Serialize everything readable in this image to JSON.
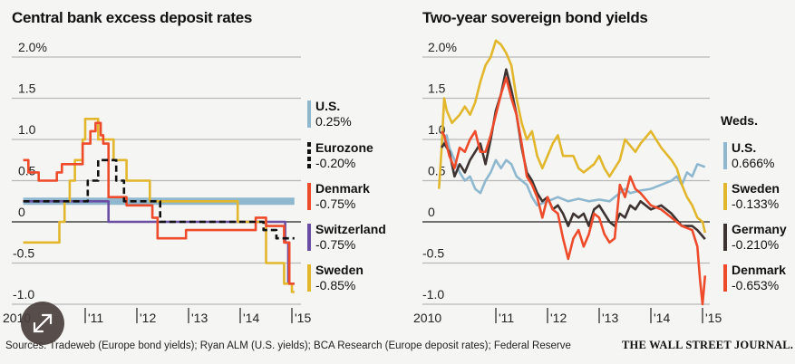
{
  "footer": {
    "sources": "Sources: Tradeweb (Europe bond yields); Ryan ALM (U.S. yields); BCA Research (Europe deposit rates); Federal Reserve",
    "publisher": "THE WALL STREET JOURNAL."
  },
  "expand_button": {
    "icon": "expand-arrows-icon"
  },
  "chart_data": [
    {
      "type": "line",
      "title": "Central bank excess deposit rates",
      "xlabel": "",
      "ylabel": "",
      "ylim": [
        -1.0,
        2.0
      ],
      "yticks": [
        "2.0%",
        "1.5",
        "1.0",
        "0.5",
        "0",
        "-0.5",
        "-1.0"
      ],
      "ytick_values": [
        2.0,
        1.5,
        1.0,
        0.5,
        0,
        -0.5,
        -1.0
      ],
      "xticks": [
        "2010",
        "'11",
        "'12",
        "'13",
        "'14",
        "'15"
      ],
      "xtick_values": [
        2010,
        2011,
        2012,
        2013,
        2014,
        2015
      ],
      "xlim": [
        2009.8,
        2015.15
      ],
      "grid": true,
      "legend_position": "right",
      "series": [
        {
          "name": "U.S.",
          "label": "0.25%",
          "color": "#8fb8cf",
          "style": "thick",
          "x": [
            2009.8,
            2015.05
          ],
          "y": [
            0.25,
            0.25
          ]
        },
        {
          "name": "Switzerland",
          "label": "-0.75%",
          "color": "#6a4ea3",
          "style": "solid",
          "x": [
            2009.8,
            2011.45,
            2011.45,
            2014.87,
            2014.87,
            2014.93,
            2014.93,
            2015.05
          ],
          "y": [
            0.25,
            0.25,
            0.0,
            0.0,
            -0.25,
            -0.25,
            -0.75,
            -0.75
          ]
        },
        {
          "name": "Sweden",
          "label": "-0.85%",
          "color": "#e2b72c",
          "style": "solid",
          "x": [
            2009.8,
            2010.5,
            2010.5,
            2010.6,
            2010.6,
            2010.7,
            2010.7,
            2010.8,
            2010.8,
            2010.95,
            2010.95,
            2011.0,
            2011.0,
            2011.25,
            2011.25,
            2011.55,
            2011.55,
            2011.8,
            2011.8,
            2012.25,
            2012.25,
            2012.45,
            2012.45,
            2013.95,
            2013.95,
            2014.5,
            2014.5,
            2014.85,
            2014.85,
            2015.0,
            2015.0,
            2015.05
          ],
          "y": [
            -0.25,
            -0.25,
            0.0,
            0.0,
            0.25,
            0.25,
            0.5,
            0.5,
            0.75,
            0.75,
            1.0,
            1.0,
            1.25,
            1.25,
            1.0,
            1.0,
            0.75,
            0.75,
            0.5,
            0.5,
            0.25,
            0.25,
            0.25,
            0.25,
            0.0,
            0.0,
            -0.5,
            -0.5,
            -0.75,
            -0.75,
            -0.85,
            -0.85
          ]
        },
        {
          "name": "Denmark",
          "label": "-0.75%",
          "color": "#ee4b2b",
          "style": "solid",
          "x": [
            2009.8,
            2009.9,
            2009.9,
            2010.1,
            2010.1,
            2010.45,
            2010.45,
            2010.55,
            2010.55,
            2010.95,
            2010.95,
            2011.1,
            2011.1,
            2011.2,
            2011.2,
            2011.3,
            2011.3,
            2011.35,
            2011.35,
            2011.45,
            2011.45,
            2011.8,
            2011.8,
            2012.3,
            2012.3,
            2012.4,
            2012.4,
            2012.95,
            2012.95,
            2014.3,
            2014.3,
            2014.5,
            2014.5,
            2014.85,
            2014.85,
            2014.95,
            2014.95,
            2015.05
          ],
          "y": [
            0.75,
            0.75,
            0.6,
            0.6,
            0.5,
            0.5,
            0.6,
            0.6,
            0.7,
            0.7,
            0.95,
            0.95,
            1.1,
            1.1,
            1.2,
            1.2,
            1.05,
            1.05,
            0.95,
            0.95,
            0.3,
            0.3,
            0.2,
            0.2,
            0.05,
            0.05,
            -0.2,
            -0.2,
            -0.1,
            -0.1,
            0.05,
            0.05,
            -0.05,
            -0.05,
            -0.25,
            -0.25,
            -0.75,
            -0.75
          ]
        },
        {
          "name": "Eurozone",
          "label": "-0.20%",
          "color": "#111111",
          "style": "dashed",
          "x": [
            2009.8,
            2011.05,
            2011.05,
            2011.25,
            2011.25,
            2011.6,
            2011.6,
            2011.75,
            2011.75,
            2012.45,
            2012.45,
            2014.45,
            2014.45,
            2014.7,
            2014.7,
            2015.05
          ],
          "y": [
            0.25,
            0.25,
            0.5,
            0.5,
            0.75,
            0.75,
            0.5,
            0.5,
            0.25,
            0.25,
            0.0,
            0.0,
            -0.1,
            -0.1,
            -0.2,
            -0.2
          ]
        }
      ]
    },
    {
      "type": "line",
      "title": "Two-year sovereign bond yields",
      "legend_title": "Weds.",
      "xlabel": "",
      "ylabel": "",
      "ylim": [
        -1.0,
        2.0
      ],
      "yticks": [
        "2.0%",
        "1.5",
        "1.0",
        "0.5",
        "0",
        "-0.5",
        "-1.0"
      ],
      "ytick_values": [
        2.0,
        1.5,
        1.0,
        0.5,
        0,
        -0.5,
        -1.0
      ],
      "xticks": [
        "2010",
        "'11",
        "'12",
        "'13",
        "'14",
        "'15"
      ],
      "xtick_values": [
        2010,
        2011,
        2012,
        2013,
        2014,
        2015
      ],
      "xlim": [
        2009.75,
        2015.15
      ],
      "grid": true,
      "legend_position": "right",
      "series": [
        {
          "name": "U.S.",
          "label": "0.666%",
          "color": "#8fb8cf",
          "x": [
            2010.0,
            2010.05,
            2010.1,
            2010.2,
            2010.3,
            2010.4,
            2010.5,
            2010.6,
            2010.7,
            2010.8,
            2010.9,
            2011.0,
            2011.1,
            2011.2,
            2011.3,
            2011.4,
            2011.5,
            2011.6,
            2011.7,
            2011.8,
            2012.0,
            2012.2,
            2012.4,
            2012.6,
            2012.8,
            2013.0,
            2013.2,
            2013.4,
            2013.5,
            2013.6,
            2013.8,
            2014.0,
            2014.2,
            2014.4,
            2014.5,
            2014.6,
            2014.7,
            2014.8,
            2014.9,
            2015.05
          ],
          "y": [
            0.95,
            1.05,
            0.9,
            0.75,
            0.6,
            0.5,
            0.55,
            0.4,
            0.35,
            0.5,
            0.6,
            0.75,
            0.65,
            0.75,
            0.7,
            0.55,
            0.5,
            0.45,
            0.3,
            0.2,
            0.25,
            0.3,
            0.25,
            0.28,
            0.25,
            0.27,
            0.25,
            0.35,
            0.4,
            0.35,
            0.38,
            0.4,
            0.45,
            0.5,
            0.55,
            0.45,
            0.6,
            0.55,
            0.7,
            0.666
          ]
        },
        {
          "name": "Sweden",
          "label": "-0.133%",
          "color": "#e2b72c",
          "x": [
            2009.9,
            2009.95,
            2010.0,
            2010.05,
            2010.15,
            2010.3,
            2010.4,
            2010.5,
            2010.6,
            2010.7,
            2010.8,
            2010.9,
            2011.0,
            2011.1,
            2011.2,
            2011.3,
            2011.4,
            2011.5,
            2011.6,
            2011.7,
            2011.8,
            2011.9,
            2012.0,
            2012.1,
            2012.2,
            2012.3,
            2012.5,
            2012.6,
            2012.7,
            2012.9,
            2013.0,
            2013.1,
            2013.2,
            2013.4,
            2013.5,
            2013.7,
            2013.8,
            2014.0,
            2014.2,
            2014.4,
            2014.5,
            2014.6,
            2014.7,
            2014.8,
            2014.9,
            2015.0,
            2015.05
          ],
          "y": [
            0.4,
            0.9,
            1.5,
            1.35,
            1.2,
            1.3,
            1.4,
            1.3,
            1.45,
            1.7,
            1.9,
            2.0,
            2.2,
            2.15,
            2.05,
            1.9,
            1.5,
            1.2,
            1.0,
            1.1,
            0.8,
            0.65,
            0.8,
            0.95,
            1.05,
            0.8,
            0.8,
            0.65,
            0.6,
            0.7,
            0.8,
            0.65,
            0.55,
            0.75,
            1.0,
            0.85,
            0.95,
            1.1,
            0.9,
            0.75,
            0.65,
            0.45,
            0.3,
            0.2,
            0.05,
            0.0,
            -0.133
          ]
        },
        {
          "name": "Germany",
          "label": "-0.210%",
          "color": "#3d3431",
          "x": [
            2009.95,
            2010.0,
            2010.1,
            2010.2,
            2010.3,
            2010.4,
            2010.5,
            2010.6,
            2010.7,
            2010.8,
            2010.9,
            2011.0,
            2011.1,
            2011.2,
            2011.3,
            2011.4,
            2011.5,
            2011.6,
            2011.7,
            2011.8,
            2011.9,
            2012.0,
            2012.1,
            2012.2,
            2012.3,
            2012.4,
            2012.5,
            2012.6,
            2012.7,
            2012.8,
            2012.9,
            2013.0,
            2013.2,
            2013.3,
            2013.4,
            2013.5,
            2013.6,
            2013.7,
            2013.8,
            2014.0,
            2014.2,
            2014.4,
            2014.6,
            2014.8,
            2014.9,
            2015.05
          ],
          "y": [
            0.9,
            0.95,
            0.85,
            0.55,
            0.7,
            0.6,
            0.75,
            0.85,
            0.95,
            0.7,
            1.0,
            1.35,
            1.55,
            1.85,
            1.6,
            1.3,
            0.9,
            0.6,
            0.5,
            0.35,
            0.25,
            0.3,
            0.15,
            0.2,
            0.1,
            -0.05,
            0.1,
            0.05,
            0.1,
            -0.05,
            0.15,
            0.2,
            0.0,
            -0.05,
            0.1,
            0.05,
            0.2,
            0.15,
            0.25,
            0.15,
            0.2,
            0.1,
            -0.05,
            -0.05,
            -0.1,
            -0.21
          ]
        },
        {
          "name": "Denmark",
          "label": "-0.653%",
          "color": "#ee4b2b",
          "x": [
            2009.95,
            2010.0,
            2010.1,
            2010.2,
            2010.3,
            2010.4,
            2010.5,
            2010.6,
            2010.7,
            2010.8,
            2010.9,
            2011.0,
            2011.1,
            2011.2,
            2011.3,
            2011.4,
            2011.5,
            2011.6,
            2011.7,
            2011.8,
            2011.9,
            2012.0,
            2012.1,
            2012.2,
            2012.3,
            2012.4,
            2012.5,
            2012.6,
            2012.7,
            2012.8,
            2012.9,
            2013.0,
            2013.1,
            2013.2,
            2013.3,
            2013.4,
            2013.5,
            2013.6,
            2013.7,
            2013.8,
            2014.0,
            2014.2,
            2014.4,
            2014.6,
            2014.8,
            2014.9,
            2014.95,
            2015.0,
            2015.05
          ],
          "y": [
            1.1,
            1.05,
            0.8,
            0.65,
            0.9,
            0.85,
            1.0,
            1.1,
            0.85,
            0.85,
            1.05,
            1.3,
            1.55,
            1.75,
            1.5,
            1.3,
            0.95,
            0.55,
            0.45,
            0.3,
            0.05,
            0.3,
            0.15,
            0.1,
            -0.2,
            -0.45,
            -0.2,
            -0.1,
            -0.3,
            -0.15,
            0.1,
            0.05,
            -0.15,
            -0.25,
            -0.2,
            0.45,
            0.3,
            0.55,
            0.4,
            0.35,
            0.2,
            0.15,
            0.05,
            -0.05,
            -0.1,
            -0.3,
            -0.7,
            -1.0,
            -0.653
          ]
        }
      ]
    }
  ]
}
